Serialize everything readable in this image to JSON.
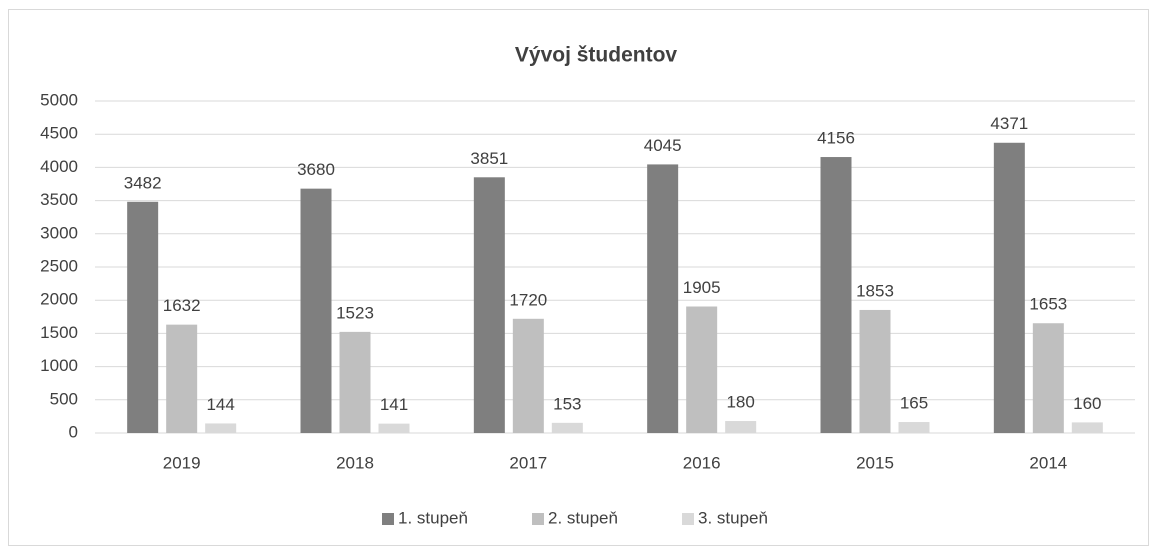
{
  "chart_data": {
    "type": "bar",
    "title": "Vývoj študentov",
    "categories": [
      "2019",
      "2018",
      "2017",
      "2016",
      "2015",
      "2014"
    ],
    "series": [
      {
        "name": "1. stupeň",
        "color": "#7f7f7f",
        "values": [
          3482,
          3680,
          3851,
          4045,
          4156,
          4371
        ]
      },
      {
        "name": "2. stupeň",
        "color": "#bfbfbf",
        "values": [
          1632,
          1523,
          1720,
          1905,
          1853,
          1653
        ]
      },
      {
        "name": "3. stupeň",
        "color": "#d9d9d9",
        "values": [
          144,
          141,
          153,
          180,
          165,
          160
        ]
      }
    ],
    "ylim": [
      0,
      5000
    ],
    "yticks": [
      0,
      500,
      1000,
      1500,
      2000,
      2500,
      3000,
      3500,
      4000,
      4500,
      5000
    ],
    "grid": true,
    "legend": "bottom"
  }
}
